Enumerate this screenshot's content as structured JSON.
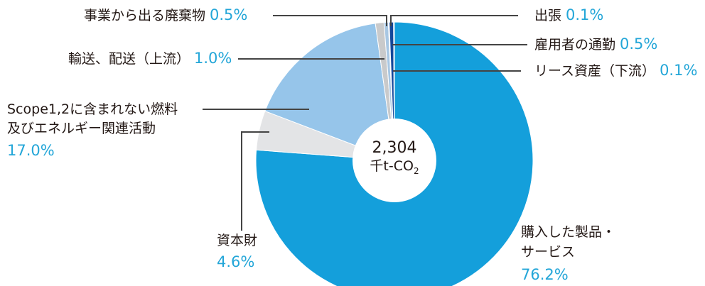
{
  "chart_data": {
    "type": "pie",
    "center": {
      "value": "2,304",
      "unit_main": "千t-CO",
      "unit_sub": "2"
    },
    "slices": [
      {
        "name": "購入した製品・サービス",
        "name_line1": "購入した製品・",
        "name_line2": "サービス",
        "value": 76.2,
        "pct": "76.2%",
        "color": "#149fdb"
      },
      {
        "name": "資本財",
        "value": 4.6,
        "pct": "4.6%",
        "color": "#e3e4e6"
      },
      {
        "name": "Scope1,2に含まれない燃料及びエネルギー関連活動",
        "name_line1": "Scope1,2に含まれない燃料",
        "name_line2": "及びエネルギー関連活動",
        "value": 17.0,
        "pct": "17.0%",
        "color": "#96c5ea"
      },
      {
        "name": "輸送、配送（上流）",
        "value": 1.0,
        "pct": "1.0%",
        "color": "#c9cacb"
      },
      {
        "name": "事業から出る廃棄物",
        "value": 0.5,
        "pct": "0.5%",
        "color": "#a8c7e3"
      },
      {
        "name": "出張",
        "value": 0.1,
        "pct": "0.1%",
        "color": "#c6d3e7"
      },
      {
        "name": "雇用者の通勤",
        "value": 0.5,
        "pct": "0.5%",
        "color": "#14479a"
      },
      {
        "name": "リース資産（下流）",
        "value": 0.1,
        "pct": "0.1%",
        "color": "#1d7cc4"
      }
    ]
  }
}
